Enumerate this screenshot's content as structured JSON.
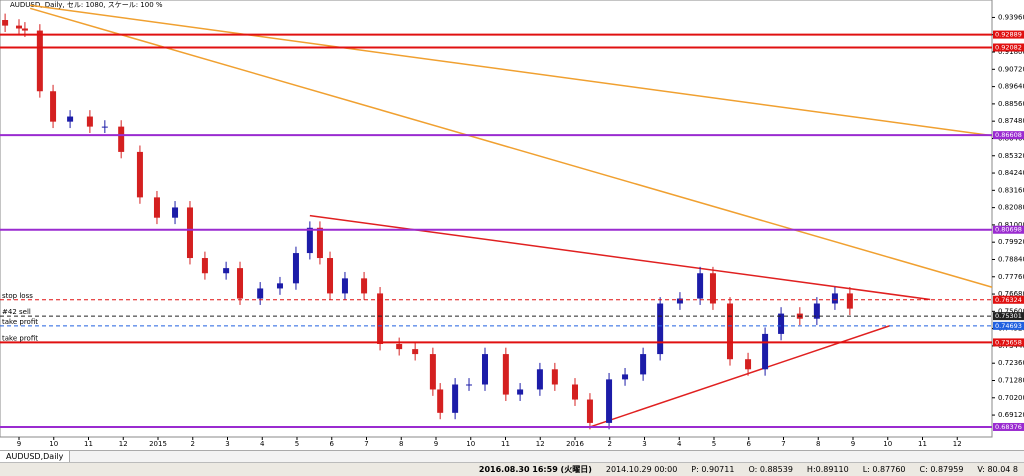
{
  "chart_data": {
    "type": "candlestick",
    "title": "AUDUSD, Daily, セル: 1080, スケール: 100 %",
    "x": [
      -0.4,
      0,
      0.17,
      0.6,
      0.98,
      1.47,
      2.04,
      2.47,
      2.94,
      3.48,
      3.97,
      4.49,
      4.92,
      5.35,
      5.96,
      6.36,
      6.94,
      7.51,
      7.97,
      8.37,
      8.66,
      8.95,
      9.38,
      9.93,
      10.39,
      10.94,
      11.4,
      11.91,
      12.12,
      12.55,
      12.95,
      13.41,
      14.01,
      14.42,
      14.99,
      15.42,
      16,
      16.43,
      16.98,
      17.44,
      17.96,
      18.45,
      19.02,
      19.6,
      19.97,
      20.46,
      20.98,
      21.47,
      21.93,
      22.47,
      22.96,
      23.48,
      23.91
    ],
    "open": [
      0.938,
      0.9345,
      0.9327,
      0.9314,
      0.8935,
      0.8745,
      0.8777,
      0.8714,
      0.8714,
      0.8556,
      0.8272,
      0.8145,
      0.8209,
      0.7893,
      0.7798,
      0.783,
      0.764,
      0.7703,
      0.7735,
      0.7924,
      0.8082,
      0.7893,
      0.7672,
      0.7766,
      0.7672,
      0.7356,
      0.7324,
      0.7293,
      0.7072,
      0.6926,
      0.7103,
      0.7103,
      0.7293,
      0.704,
      0.7072,
      0.7198,
      0.7103,
      0.7009,
      0.6863,
      0.7135,
      0.7166,
      0.7293,
      0.7609,
      0.764,
      0.7798,
      0.7609,
      0.7261,
      0.7198,
      0.7419,
      0.7546,
      0.7514,
      0.7609,
      0.7672
    ],
    "high": [
      0.942,
      0.9385,
      0.9367,
      0.9354,
      0.8975,
      0.8817,
      0.8817,
      0.8754,
      0.8754,
      0.8596,
      0.8312,
      0.8249,
      0.8249,
      0.7933,
      0.787,
      0.787,
      0.7743,
      0.7775,
      0.7964,
      0.8122,
      0.8122,
      0.7933,
      0.7806,
      0.7806,
      0.7712,
      0.7396,
      0.7364,
      0.7333,
      0.7112,
      0.7143,
      0.7143,
      0.7333,
      0.7333,
      0.7112,
      0.7238,
      0.7238,
      0.7143,
      0.7049,
      0.7175,
      0.7206,
      0.7333,
      0.7649,
      0.768,
      0.7838,
      0.7838,
      0.7649,
      0.7301,
      0.7459,
      0.7586,
      0.7586,
      0.7649,
      0.7712,
      0.7712
    ],
    "low": [
      0.9305,
      0.9287,
      0.9274,
      0.8895,
      0.8705,
      0.8705,
      0.8674,
      0.8674,
      0.8516,
      0.8232,
      0.8105,
      0.8105,
      0.7853,
      0.7758,
      0.7758,
      0.76,
      0.76,
      0.7663,
      0.7695,
      0.7884,
      0.7853,
      0.7632,
      0.7632,
      0.7632,
      0.7316,
      0.7284,
      0.7253,
      0.7032,
      0.6886,
      0.6886,
      0.7063,
      0.7063,
      0.7,
      0.7,
      0.7032,
      0.7063,
      0.6969,
      0.6823,
      0.6823,
      0.7095,
      0.7126,
      0.7253,
      0.7569,
      0.76,
      0.7569,
      0.7221,
      0.7158,
      0.7158,
      0.7379,
      0.7474,
      0.7474,
      0.7569,
      0.7537
    ],
    "close": [
      0.9345,
      0.9327,
      0.9314,
      0.8935,
      0.8745,
      0.8777,
      0.8714,
      0.8714,
      0.8556,
      0.8272,
      0.8145,
      0.8209,
      0.7893,
      0.7798,
      0.783,
      0.764,
      0.7703,
      0.7735,
      0.7924,
      0.8082,
      0.7893,
      0.7672,
      0.7766,
      0.7672,
      0.7356,
      0.7324,
      0.7293,
      0.7072,
      0.6926,
      0.7103,
      0.7103,
      0.7293,
      0.704,
      0.7072,
      0.7198,
      0.7103,
      0.7009,
      0.6863,
      0.7135,
      0.7166,
      0.7293,
      0.7609,
      0.764,
      0.7798,
      0.7609,
      0.7261,
      0.7198,
      0.7419,
      0.7546,
      0.7514,
      0.7609,
      0.7672,
      0.7577
    ],
    "up_color": "#1c1ca8",
    "down_color": "#d42020",
    "xlim": [
      -0.547,
      28
    ],
    "ylim": [
      0.6775,
      0.9505
    ],
    "xticks": [
      {
        "value": 0,
        "label": "9"
      },
      {
        "value": 1,
        "label": "10"
      },
      {
        "value": 2,
        "label": "11"
      },
      {
        "value": 3,
        "label": "12"
      },
      {
        "value": 4,
        "label": "2015"
      },
      {
        "value": 5,
        "label": "2"
      },
      {
        "value": 6,
        "label": "3"
      },
      {
        "value": 7,
        "label": "4"
      },
      {
        "value": 8,
        "label": "5"
      },
      {
        "value": 9,
        "label": "6"
      },
      {
        "value": 10,
        "label": "7"
      },
      {
        "value": 11,
        "label": "8"
      },
      {
        "value": 12,
        "label": "9"
      },
      {
        "value": 13,
        "label": "10"
      },
      {
        "value": 14,
        "label": "11"
      },
      {
        "value": 15,
        "label": "12"
      },
      {
        "value": 16,
        "label": "2016"
      },
      {
        "value": 17,
        "label": "2"
      },
      {
        "value": 18,
        "label": "3"
      },
      {
        "value": 19,
        "label": "4"
      },
      {
        "value": 20,
        "label": "5"
      },
      {
        "value": 21,
        "label": "6"
      },
      {
        "value": 22,
        "label": "7"
      },
      {
        "value": 23,
        "label": "8"
      },
      {
        "value": 24,
        "label": "9"
      },
      {
        "value": 25,
        "label": "10"
      },
      {
        "value": 26,
        "label": "11"
      },
      {
        "value": 27,
        "label": "12"
      }
    ],
    "yticks": [
      {
        "value": 0.9396,
        "label": "0.93960"
      },
      {
        "value": 0.9288,
        "label": "0.92880"
      },
      {
        "value": 0.918,
        "label": "0.91800"
      },
      {
        "value": 0.9072,
        "label": "0.90720"
      },
      {
        "value": 0.8964,
        "label": "0.89640"
      },
      {
        "value": 0.8856,
        "label": "0.88560"
      },
      {
        "value": 0.8748,
        "label": "0.87480"
      },
      {
        "value": 0.864,
        "label": "0.86400"
      },
      {
        "value": 0.8532,
        "label": "0.85320"
      },
      {
        "value": 0.8424,
        "label": "0.84240"
      },
      {
        "value": 0.8316,
        "label": "0.83160"
      },
      {
        "value": 0.8208,
        "label": "0.82080"
      },
      {
        "value": 0.81,
        "label": "0.81000"
      },
      {
        "value": 0.7992,
        "label": "0.79920"
      },
      {
        "value": 0.7884,
        "label": "0.78840"
      },
      {
        "value": 0.7776,
        "label": "0.77760"
      },
      {
        "value": 0.7668,
        "label": "0.76680"
      },
      {
        "value": 0.756,
        "label": "0.75600"
      },
      {
        "value": 0.7452,
        "label": "0.74520"
      },
      {
        "value": 0.7344,
        "label": "0.73440"
      },
      {
        "value": 0.7236,
        "label": "0.72360"
      },
      {
        "value": 0.7128,
        "label": "0.71280"
      },
      {
        "value": 0.702,
        "label": "0.70200"
      },
      {
        "value": 0.6912,
        "label": "0.69120"
      }
    ],
    "levels": [
      {
        "price": 0.92889,
        "color": "#e01010"
      },
      {
        "price": 0.92082,
        "color": "#e01010"
      },
      {
        "price": 0.86608,
        "color": "#9a2bd0"
      },
      {
        "price": 0.80698,
        "color": "#9a2bd0"
      },
      {
        "price": 0.76324,
        "color": "#e01010",
        "dashed": true,
        "note": "stop loss"
      },
      {
        "price": 0.75301,
        "color": "#222222",
        "dashed": true,
        "note": "#42 sell"
      },
      {
        "price": 0.74693,
        "color": "#2060e0",
        "dashed": true,
        "note": "take profit"
      },
      {
        "price": 0.73658,
        "color": "#e01010",
        "note": "take profit"
      },
      {
        "price": 0.68376,
        "color": "#9a2bd0"
      }
    ],
    "trendlines": [
      {
        "x": [
          0.32,
          28.23
        ],
        "y": [
          0.9472,
          0.8651
        ],
        "color": "#f0a030"
      },
      {
        "x": [
          0.32,
          28.92
        ],
        "y": [
          0.9453,
          0.7653
        ],
        "color": "#f0a030"
      },
      {
        "x": [
          8.37,
          26.22
        ],
        "y": [
          0.8158,
          0.7634
        ],
        "color": "#e02020"
      },
      {
        "x": [
          16.43,
          25.06
        ],
        "y": [
          0.6838,
          0.747
        ],
        "color": "#e02020"
      }
    ]
  },
  "tab": "AUDUSD,Daily",
  "status_bar": [
    "2016.08.30 16:59 (火曜日)",
    "2014.10.29 00:00",
    "P: 0.90711",
    "O: 0.88539",
    "H:0.89110",
    "L: 0.87760",
    "C: 0.87959",
    "V: 80.04 8"
  ]
}
